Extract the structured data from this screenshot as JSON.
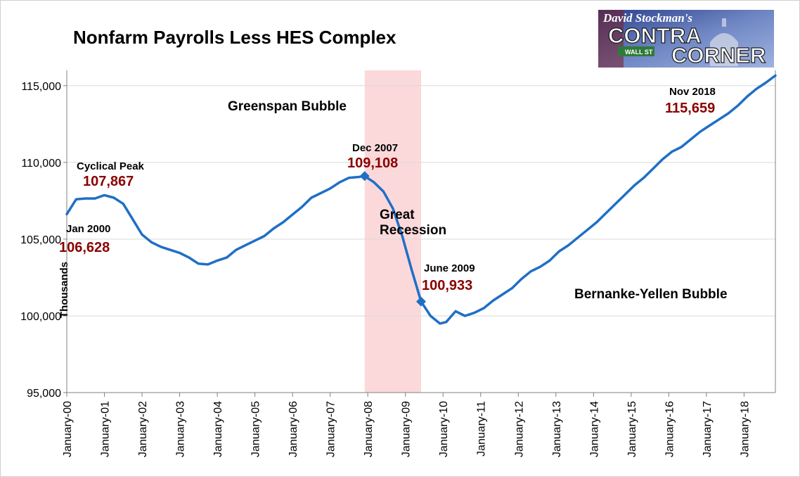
{
  "chart_data": {
    "type": "line",
    "title": "Nonfarm Payrolls Less HES Complex",
    "ylabel": "Thousands",
    "ylim": [
      95000,
      116000
    ],
    "y_ticks": [
      "95,000",
      "100,000",
      "105,000",
      "110,000",
      "115,000"
    ],
    "y_tick_values": [
      95000,
      100000,
      105000,
      110000,
      115000
    ],
    "x_start": "2000-01",
    "x_end": "2018-11",
    "x_ticks": [
      "January-00",
      "January-01",
      "January-02",
      "January-03",
      "January-04",
      "January-05",
      "January-06",
      "January-07",
      "January-08",
      "January-09",
      "January-10",
      "January-11",
      "January-12",
      "January-13",
      "January-14",
      "January-15",
      "January-16",
      "January-17",
      "January-18"
    ],
    "x_tick_dates": [
      "2000-01",
      "2001-01",
      "2002-01",
      "2003-01",
      "2004-01",
      "2005-01",
      "2006-01",
      "2007-01",
      "2008-01",
      "2009-01",
      "2010-01",
      "2011-01",
      "2012-01",
      "2013-01",
      "2014-01",
      "2015-01",
      "2016-01",
      "2017-01",
      "2018-01"
    ],
    "gridlines": "horizontal",
    "series_color": "#1f6fc5",
    "recession_shade": {
      "start": "2007-12",
      "end": "2009-06",
      "color": "#fbd9db",
      "label_line1": "Great",
      "label_line2": "Recession"
    },
    "series": [
      {
        "points": [
          [
            "2000-01",
            106628
          ],
          [
            "2000-04",
            107600
          ],
          [
            "2000-07",
            107650
          ],
          [
            "2000-10",
            107650
          ],
          [
            "2001-01",
            107867
          ],
          [
            "2001-04",
            107700
          ],
          [
            "2001-07",
            107300
          ],
          [
            "2001-10",
            106300
          ],
          [
            "2002-01",
            105300
          ],
          [
            "2002-04",
            104800
          ],
          [
            "2002-07",
            104500
          ],
          [
            "2002-10",
            104300
          ],
          [
            "2003-01",
            104100
          ],
          [
            "2003-04",
            103800
          ],
          [
            "2003-07",
            103400
          ],
          [
            "2003-10",
            103350
          ],
          [
            "2004-01",
            103600
          ],
          [
            "2004-04",
            103800
          ],
          [
            "2004-07",
            104300
          ],
          [
            "2004-10",
            104600
          ],
          [
            "2005-01",
            104900
          ],
          [
            "2005-04",
            105200
          ],
          [
            "2005-07",
            105700
          ],
          [
            "2005-10",
            106100
          ],
          [
            "2006-01",
            106600
          ],
          [
            "2006-04",
            107100
          ],
          [
            "2006-07",
            107700
          ],
          [
            "2006-10",
            108000
          ],
          [
            "2007-01",
            108300
          ],
          [
            "2007-04",
            108700
          ],
          [
            "2007-07",
            109000
          ],
          [
            "2007-10",
            109050
          ],
          [
            "2007-12",
            109108
          ],
          [
            "2008-03",
            108700
          ],
          [
            "2008-06",
            108100
          ],
          [
            "2008-09",
            107000
          ],
          [
            "2008-12",
            105200
          ],
          [
            "2009-03",
            103000
          ],
          [
            "2009-06",
            100933
          ],
          [
            "2009-09",
            100000
          ],
          [
            "2009-12",
            99500
          ],
          [
            "2010-02",
            99600
          ],
          [
            "2010-05",
            100300
          ],
          [
            "2010-08",
            100000
          ],
          [
            "2010-11",
            100200
          ],
          [
            "2011-02",
            100500
          ],
          [
            "2011-05",
            101000
          ],
          [
            "2011-08",
            101400
          ],
          [
            "2011-11",
            101800
          ],
          [
            "2012-02",
            102400
          ],
          [
            "2012-05",
            102900
          ],
          [
            "2012-08",
            103200
          ],
          [
            "2012-11",
            103600
          ],
          [
            "2013-02",
            104200
          ],
          [
            "2013-05",
            104600
          ],
          [
            "2013-08",
            105100
          ],
          [
            "2013-11",
            105600
          ],
          [
            "2014-02",
            106100
          ],
          [
            "2014-05",
            106700
          ],
          [
            "2014-08",
            107300
          ],
          [
            "2014-11",
            107900
          ],
          [
            "2015-02",
            108500
          ],
          [
            "2015-05",
            109000
          ],
          [
            "2015-08",
            109600
          ],
          [
            "2015-11",
            110200
          ],
          [
            "2016-02",
            110700
          ],
          [
            "2016-05",
            111000
          ],
          [
            "2016-08",
            111500
          ],
          [
            "2016-11",
            112000
          ],
          [
            "2017-02",
            112400
          ],
          [
            "2017-05",
            112800
          ],
          [
            "2017-08",
            113200
          ],
          [
            "2017-11",
            113700
          ],
          [
            "2018-02",
            114300
          ],
          [
            "2018-05",
            114800
          ],
          [
            "2018-08",
            115200
          ],
          [
            "2018-11",
            115659
          ]
        ]
      }
    ],
    "annotations": [
      {
        "label": "Jan 2000",
        "value": "106,628",
        "x": "2000-01",
        "y": 106628,
        "marker": false
      },
      {
        "label": "Cyclical Peak",
        "value": "107,867",
        "x": "2001-01",
        "y": 107867,
        "marker": false
      },
      {
        "label": "Dec 2007",
        "value": "109,108",
        "x": "2007-12",
        "y": 109108,
        "marker": true
      },
      {
        "label": "June 2009",
        "value": "100,933",
        "x": "2009-06",
        "y": 100933,
        "marker": true
      },
      {
        "label": "Nov 2018",
        "value": "115,659",
        "x": "2018-11",
        "y": 115659,
        "marker": false
      }
    ],
    "region_labels": [
      "Greenspan Bubble",
      "Bernanke-Yellen Bubble"
    ]
  },
  "logo": {
    "line1": "David Stockman's",
    "line2": "CONTRA",
    "line3": "CORNER",
    "sign": "WALL ST"
  }
}
